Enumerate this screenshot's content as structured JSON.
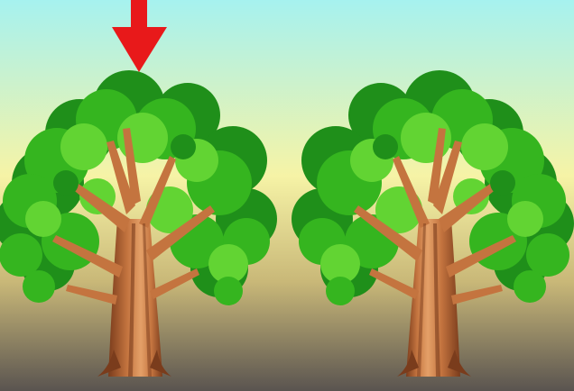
{
  "scene": {
    "kind": "spot-the-difference",
    "panels": [
      "left-tree-panel",
      "right-tree-panel"
    ],
    "indicator": {
      "icon": "down-arrow-icon",
      "color": "#e8191a",
      "points_to": "left-tree"
    },
    "colors": {
      "sky_top": "#a6f2ef",
      "sky_mid": "#f6f3a6",
      "ground_mid": "#c9b878",
      "ground_bottom": "#5a5450",
      "foliage_dark": "#1f8f1a",
      "foliage_mid": "#35b51f",
      "foliage_light": "#62d433",
      "trunk": "#c4743f",
      "trunk_shade": "#7a3c1c",
      "trunk_highlight": "#e4a068"
    }
  }
}
